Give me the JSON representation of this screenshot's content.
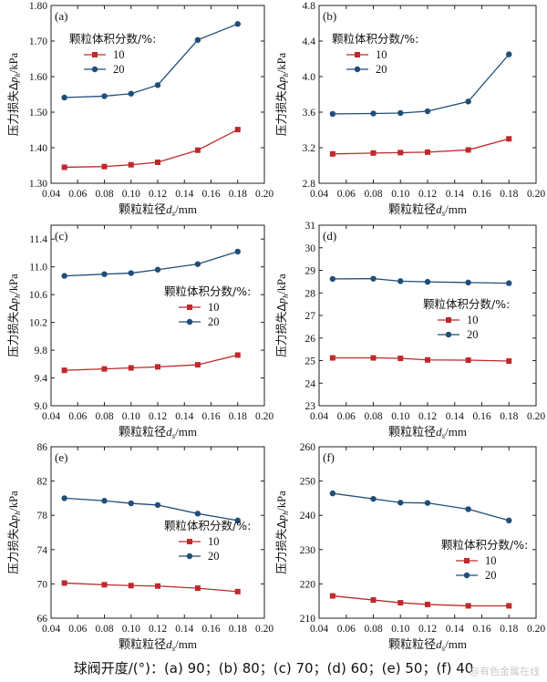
{
  "caption": "球阀开度/(°)：(a) 90；(b) 80；(c) 70；(d) 60；(e) 50；(f) 40",
  "watermark": "@有色金属在线",
  "axis_labels": {
    "xlabel_main": "颗粒粒径",
    "xlabel_sym": "d",
    "xlabel_sub": "s",
    "xlabel_unit": "/mm",
    "ylabel_main": "压力损失Δ",
    "ylabel_sym": "p",
    "ylabel_sub": "h",
    "ylabel_unit": "/kPa"
  },
  "legend_title": "颗粒体积分数/%:",
  "colors": {
    "series_10": "#c0282b",
    "series_20": "#1f4e79"
  },
  "chart_data": [
    {
      "id": "a",
      "label": "(a)",
      "type": "line",
      "x": [
        0.05,
        0.08,
        0.1,
        0.12,
        0.15,
        0.18
      ],
      "xlim": [
        0.04,
        0.2
      ],
      "xticks": [
        0.04,
        0.06,
        0.08,
        0.1,
        0.12,
        0.14,
        0.16,
        0.18,
        0.2
      ],
      "xtick_labels": [
        "0.04",
        "0.06",
        "0.08",
        "0.10",
        "0.12",
        "0.14",
        "0.16",
        "0.18",
        "0.20"
      ],
      "ylim": [
        1.3,
        1.8
      ],
      "yticks": [
        1.3,
        1.4,
        1.5,
        1.6,
        1.7,
        1.8
      ],
      "ytick_labels": [
        "1.30",
        "1.40",
        "1.50",
        "1.60",
        "1.70",
        "1.80"
      ],
      "legend_position": "upper-left",
      "series": [
        {
          "name": "10",
          "values": [
            1.345,
            1.347,
            1.352,
            1.359,
            1.393,
            1.451
          ]
        },
        {
          "name": "20",
          "values": [
            1.541,
            1.545,
            1.552,
            1.576,
            1.703,
            1.748
          ]
        }
      ]
    },
    {
      "id": "b",
      "label": "(b)",
      "type": "line",
      "x": [
        0.05,
        0.08,
        0.1,
        0.12,
        0.15,
        0.18
      ],
      "xlim": [
        0.04,
        0.2
      ],
      "xticks": [
        0.04,
        0.06,
        0.08,
        0.1,
        0.12,
        0.14,
        0.16,
        0.18,
        0.2
      ],
      "xtick_labels": [
        "0.04",
        "0.06",
        "0.08",
        "0.10",
        "0.12",
        "0.14",
        "0.16",
        "0.18",
        "0.20"
      ],
      "ylim": [
        2.8,
        4.8
      ],
      "yticks": [
        2.8,
        3.2,
        3.6,
        4.0,
        4.4,
        4.8
      ],
      "ytick_labels": [
        "2.8",
        "3.2",
        "3.6",
        "4.0",
        "4.4",
        "4.8"
      ],
      "legend_position": "upper-left",
      "series": [
        {
          "name": "10",
          "values": [
            3.13,
            3.14,
            3.145,
            3.15,
            3.175,
            3.3
          ]
        },
        {
          "name": "20",
          "values": [
            3.58,
            3.585,
            3.59,
            3.61,
            3.72,
            4.25
          ]
        }
      ]
    },
    {
      "id": "c",
      "label": "(c)",
      "type": "line",
      "x": [
        0.05,
        0.08,
        0.1,
        0.12,
        0.15,
        0.18
      ],
      "xlim": [
        0.04,
        0.2
      ],
      "xticks": [
        0.04,
        0.06,
        0.08,
        0.1,
        0.12,
        0.14,
        0.16,
        0.18,
        0.2
      ],
      "xtick_labels": [
        "0.04",
        "0.06",
        "0.08",
        "0.10",
        "0.12",
        "0.14",
        "0.16",
        "0.18",
        "0.20"
      ],
      "ylim": [
        9.0,
        11.6
      ],
      "yticks": [
        9.0,
        9.4,
        9.8,
        10.2,
        10.6,
        11.0,
        11.4
      ],
      "ytick_labels": [
        "9.0",
        "9.4",
        "9.8",
        "10.2",
        "10.6",
        "11.0",
        "11.4"
      ],
      "legend_position": "center-right",
      "series": [
        {
          "name": "10",
          "values": [
            9.51,
            9.53,
            9.545,
            9.56,
            9.59,
            9.73
          ]
        },
        {
          "name": "20",
          "values": [
            10.87,
            10.895,
            10.91,
            10.96,
            11.04,
            11.22
          ]
        }
      ]
    },
    {
      "id": "d",
      "label": "(d)",
      "type": "line",
      "x": [
        0.05,
        0.08,
        0.1,
        0.12,
        0.15,
        0.18
      ],
      "xlim": [
        0.04,
        0.2
      ],
      "xticks": [
        0.04,
        0.06,
        0.08,
        0.1,
        0.12,
        0.14,
        0.16,
        0.18,
        0.2
      ],
      "xtick_labels": [
        "0.04",
        "0.06",
        "0.08",
        "0.10",
        "0.12",
        "0.14",
        "0.16",
        "0.18",
        "0.20"
      ],
      "ylim": [
        23,
        31
      ],
      "yticks": [
        23,
        24,
        25,
        26,
        27,
        28,
        29,
        30,
        31
      ],
      "ytick_labels": [
        "23",
        "24",
        "25",
        "26",
        "27",
        "28",
        "29",
        "30",
        "31"
      ],
      "legend_position": "center-right",
      "series": [
        {
          "name": "10",
          "values": [
            25.12,
            25.12,
            25.1,
            25.03,
            25.02,
            24.98
          ]
        },
        {
          "name": "20",
          "values": [
            28.62,
            28.63,
            28.52,
            28.49,
            28.46,
            28.43
          ]
        }
      ]
    },
    {
      "id": "e",
      "label": "(e)",
      "type": "line",
      "x": [
        0.05,
        0.08,
        0.1,
        0.12,
        0.15,
        0.18
      ],
      "xlim": [
        0.04,
        0.2
      ],
      "xticks": [
        0.04,
        0.06,
        0.08,
        0.1,
        0.12,
        0.14,
        0.16,
        0.18,
        0.2
      ],
      "xtick_labels": [
        "0.04",
        "0.06",
        "0.08",
        "0.10",
        "0.12",
        "0.14",
        "0.16",
        "0.18",
        "0.20"
      ],
      "ylim": [
        66,
        86
      ],
      "yticks": [
        66,
        70,
        74,
        78,
        82,
        86
      ],
      "ytick_labels": [
        "66",
        "70",
        "74",
        "78",
        "82",
        "86"
      ],
      "legend_position": "lower-right",
      "series": [
        {
          "name": "10",
          "values": [
            70.1,
            69.9,
            69.8,
            69.75,
            69.5,
            69.1
          ]
        },
        {
          "name": "20",
          "values": [
            80.0,
            79.7,
            79.4,
            79.2,
            78.2,
            77.4
          ]
        }
      ]
    },
    {
      "id": "f",
      "label": "(f)",
      "type": "line",
      "x": [
        0.05,
        0.08,
        0.1,
        0.12,
        0.15,
        0.18
      ],
      "xlim": [
        0.04,
        0.2
      ],
      "xticks": [
        0.04,
        0.06,
        0.08,
        0.1,
        0.12,
        0.14,
        0.16,
        0.18,
        0.2
      ],
      "xtick_labels": [
        "0.04",
        "0.06",
        "0.08",
        "0.10",
        "0.12",
        "0.14",
        "0.16",
        "0.18",
        "0.20"
      ],
      "ylim": [
        210,
        260
      ],
      "yticks": [
        210,
        220,
        230,
        240,
        250,
        260
      ],
      "ytick_labels": [
        "210",
        "220",
        "230",
        "240",
        "250",
        "260"
      ],
      "legend_position": "center-right",
      "series": [
        {
          "name": "10",
          "values": [
            216.5,
            215.3,
            214.5,
            214.0,
            213.6,
            213.6
          ]
        },
        {
          "name": "20",
          "values": [
            246.4,
            244.8,
            243.7,
            243.6,
            241.8,
            238.5
          ]
        }
      ]
    }
  ]
}
